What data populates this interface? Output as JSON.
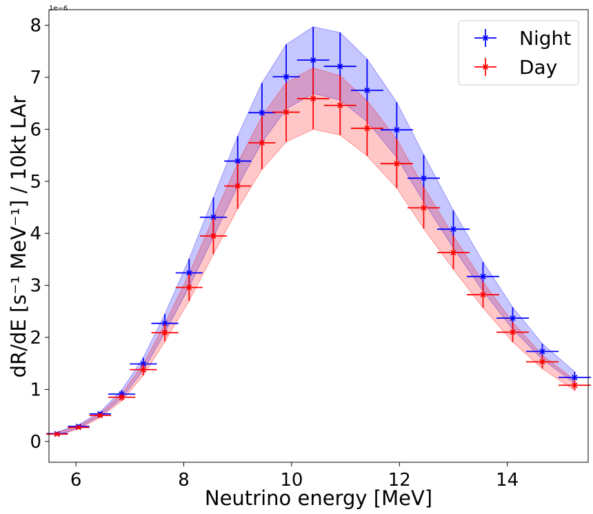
{
  "chart_data": {
    "type": "scatter",
    "xlabel": "Neutrino energy [MeV]",
    "ylabel": "dR/dE [s⁻¹ MeV⁻¹] / 10kt LAr",
    "y_offset_text": "1e−6",
    "xlim": [
      5.5,
      15.5
    ],
    "ylim": [
      -0.4,
      8.3
    ],
    "x_ticks": [
      6,
      8,
      10,
      12,
      14
    ],
    "x_tick_labels": [
      "6",
      "8",
      "10",
      "12",
      "14"
    ],
    "y_ticks": [
      0,
      1,
      2,
      3,
      4,
      5,
      6,
      7,
      8
    ],
    "y_tick_labels": [
      "0",
      "1",
      "2",
      "3",
      "4",
      "5",
      "6",
      "7",
      "8"
    ],
    "grid": false,
    "legend_position": "top-right",
    "series": [
      {
        "name": "Night",
        "color": "#0000ff",
        "band_color": "#0000ff",
        "marker": "x",
        "points": [
          {
            "x": 5.65,
            "xerr": 0.2,
            "y": 0.15,
            "yerr": 0.03
          },
          {
            "x": 6.05,
            "xerr": 0.2,
            "y": 0.29,
            "yerr": 0.03
          },
          {
            "x": 6.45,
            "xerr": 0.2,
            "y": 0.53,
            "yerr": 0.04
          },
          {
            "x": 6.85,
            "xerr": 0.25,
            "y": 0.91,
            "yerr": 0.08
          },
          {
            "x": 7.25,
            "xerr": 0.25,
            "y": 1.49,
            "yerr": 0.12
          },
          {
            "x": 7.65,
            "xerr": 0.25,
            "y": 2.27,
            "yerr": 0.18
          },
          {
            "x": 8.1,
            "xerr": 0.25,
            "y": 3.24,
            "yerr": 0.27
          },
          {
            "x": 8.55,
            "xerr": 0.25,
            "y": 4.31,
            "yerr": 0.38
          },
          {
            "x": 9.0,
            "xerr": 0.25,
            "y": 5.39,
            "yerr": 0.48
          },
          {
            "x": 9.45,
            "xerr": 0.25,
            "y": 6.32,
            "yerr": 0.57
          },
          {
            "x": 9.9,
            "xerr": 0.25,
            "y": 7.01,
            "yerr": 0.62
          },
          {
            "x": 10.4,
            "xerr": 0.3,
            "y": 7.33,
            "yerr": 0.64
          },
          {
            "x": 10.9,
            "xerr": 0.3,
            "y": 7.21,
            "yerr": 0.65
          },
          {
            "x": 11.4,
            "xerr": 0.3,
            "y": 6.75,
            "yerr": 0.6
          },
          {
            "x": 11.95,
            "xerr": 0.3,
            "y": 5.99,
            "yerr": 0.53
          },
          {
            "x": 12.45,
            "xerr": 0.3,
            "y": 5.06,
            "yerr": 0.45
          },
          {
            "x": 13.0,
            "xerr": 0.3,
            "y": 4.08,
            "yerr": 0.36
          },
          {
            "x": 13.55,
            "xerr": 0.3,
            "y": 3.17,
            "yerr": 0.28
          },
          {
            "x": 14.1,
            "xerr": 0.3,
            "y": 2.37,
            "yerr": 0.21
          },
          {
            "x": 14.65,
            "xerr": 0.3,
            "y": 1.73,
            "yerr": 0.15
          },
          {
            "x": 15.25,
            "xerr": 0.3,
            "y": 1.23,
            "yerr": 0.11
          }
        ]
      },
      {
        "name": "Day",
        "color": "#ff0000",
        "band_color": "#ff0000",
        "marker": "x",
        "points": [
          {
            "x": 5.65,
            "xerr": 0.2,
            "y": 0.14,
            "yerr": 0.03
          },
          {
            "x": 6.05,
            "xerr": 0.2,
            "y": 0.27,
            "yerr": 0.03
          },
          {
            "x": 6.45,
            "xerr": 0.2,
            "y": 0.5,
            "yerr": 0.04
          },
          {
            "x": 6.85,
            "xerr": 0.25,
            "y": 0.85,
            "yerr": 0.07
          },
          {
            "x": 7.25,
            "xerr": 0.25,
            "y": 1.38,
            "yerr": 0.11
          },
          {
            "x": 7.65,
            "xerr": 0.25,
            "y": 2.09,
            "yerr": 0.17
          },
          {
            "x": 8.1,
            "xerr": 0.25,
            "y": 2.96,
            "yerr": 0.26
          },
          {
            "x": 8.55,
            "xerr": 0.25,
            "y": 3.95,
            "yerr": 0.35
          },
          {
            "x": 9.0,
            "xerr": 0.25,
            "y": 4.91,
            "yerr": 0.44
          },
          {
            "x": 9.45,
            "xerr": 0.25,
            "y": 5.74,
            "yerr": 0.51
          },
          {
            "x": 9.9,
            "xerr": 0.25,
            "y": 6.33,
            "yerr": 0.57
          },
          {
            "x": 10.4,
            "xerr": 0.3,
            "y": 6.59,
            "yerr": 0.59
          },
          {
            "x": 10.9,
            "xerr": 0.3,
            "y": 6.46,
            "yerr": 0.57
          },
          {
            "x": 11.4,
            "xerr": 0.3,
            "y": 6.02,
            "yerr": 0.53
          },
          {
            "x": 11.95,
            "xerr": 0.3,
            "y": 5.34,
            "yerr": 0.47
          },
          {
            "x": 12.45,
            "xerr": 0.3,
            "y": 4.49,
            "yerr": 0.4
          },
          {
            "x": 13.0,
            "xerr": 0.3,
            "y": 3.63,
            "yerr": 0.32
          },
          {
            "x": 13.55,
            "xerr": 0.3,
            "y": 2.82,
            "yerr": 0.25
          },
          {
            "x": 14.1,
            "xerr": 0.3,
            "y": 2.1,
            "yerr": 0.19
          },
          {
            "x": 14.65,
            "xerr": 0.3,
            "y": 1.53,
            "yerr": 0.13
          },
          {
            "x": 15.25,
            "xerr": 0.3,
            "y": 1.08,
            "yerr": 0.1
          }
        ]
      }
    ]
  }
}
